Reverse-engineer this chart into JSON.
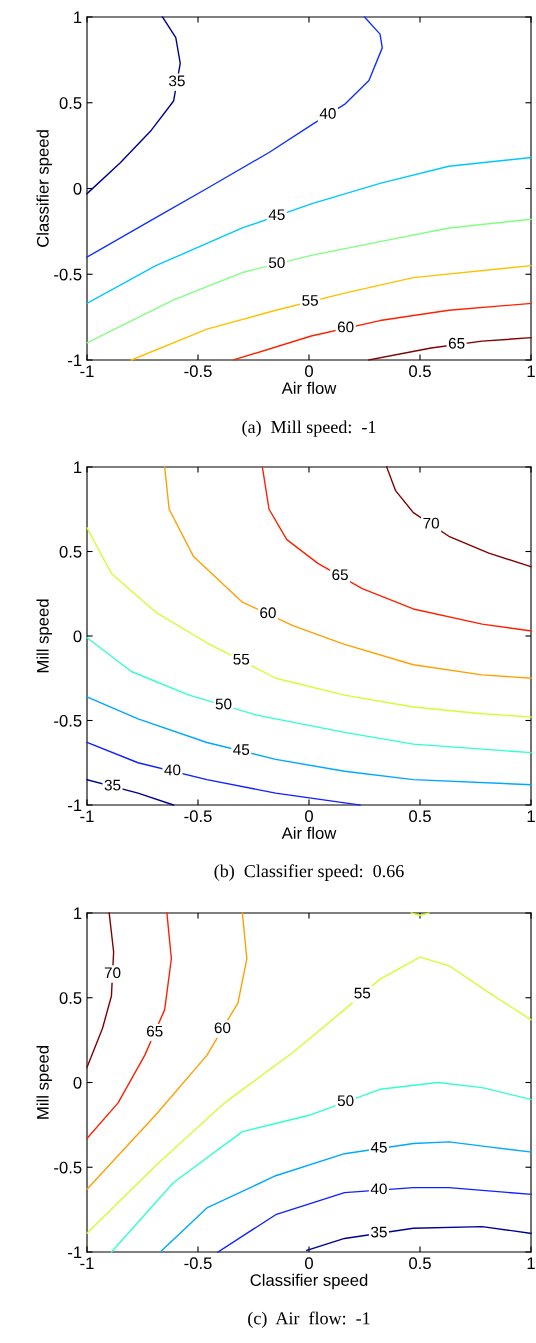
{
  "chart_data": [
    {
      "type": "line",
      "title": "(a)  Mill speed:  -1",
      "xlabel": "Air flow",
      "ylabel": "Classifier speed",
      "xlim": [
        -1,
        1
      ],
      "ylim": [
        -1,
        1
      ],
      "xticks": [
        -1,
        -0.5,
        0,
        0.5,
        1
      ],
      "yticks": [
        -1,
        -0.5,
        0,
        0.5,
        1
      ],
      "grid": false,
      "legend": false,
      "series": [
        {
          "name": "35",
          "color": "#00008f",
          "x": [
            -0.66,
            -0.6,
            -0.58,
            -0.61,
            -0.71,
            -0.85,
            -1
          ],
          "values": [
            1,
            0.88,
            0.73,
            0.51,
            0.34,
            0.15,
            -0.03
          ]
        },
        {
          "name": "40",
          "color": "#1030ff",
          "x": [
            0.25,
            0.32,
            0.33,
            0.27,
            0.16,
            0.01,
            -0.18,
            -0.46,
            -0.69,
            -1
          ],
          "values": [
            1,
            0.9,
            0.82,
            0.63,
            0.49,
            0.37,
            0.21,
            0.0,
            -0.17,
            -0.4
          ]
        },
        {
          "name": "45",
          "color": "#00c8ff",
          "x": [
            -1,
            -0.69,
            -0.3,
            0.01,
            0.32,
            0.63,
            1
          ],
          "values": [
            -0.67,
            -0.45,
            -0.23,
            -0.09,
            0.03,
            0.13,
            0.18
          ]
        },
        {
          "name": "50",
          "color": "#80ff80",
          "x": [
            -1,
            -0.61,
            -0.3,
            0.01,
            0.32,
            0.63,
            1
          ],
          "values": [
            -0.9,
            -0.65,
            -0.49,
            -0.39,
            -0.31,
            -0.23,
            -0.18
          ]
        },
        {
          "name": "55",
          "color": "#ffc000",
          "x": [
            -0.8,
            -0.46,
            -0.15,
            0.16,
            0.47,
            1
          ],
          "values": [
            -1,
            -0.82,
            -0.71,
            -0.61,
            -0.52,
            -0.45
          ]
        },
        {
          "name": "60",
          "color": "#ff2000",
          "x": [
            -0.34,
            0.01,
            0.32,
            0.63,
            1
          ],
          "values": [
            -1,
            -0.86,
            -0.77,
            -0.71,
            -0.67
          ]
        },
        {
          "name": "65",
          "color": "#800000",
          "x": [
            0.27,
            0.55,
            0.78,
            1
          ],
          "values": [
            -1,
            -0.93,
            -0.89,
            -0.87
          ]
        }
      ]
    },
    {
      "type": "line",
      "title": "(b)  Classifier speed:  0.66",
      "xlabel": "Air flow",
      "ylabel": "Mill speed",
      "xlim": [
        -1,
        1
      ],
      "ylim": [
        -1,
        1
      ],
      "xticks": [
        -1,
        -0.5,
        0,
        0.5,
        1
      ],
      "yticks": [
        -1,
        -0.5,
        0,
        0.5,
        1
      ],
      "grid": false,
      "legend": false,
      "series": [
        {
          "name": "70",
          "color": "#800000",
          "x": [
            0.35,
            0.39,
            0.47,
            0.63,
            0.81,
            1
          ],
          "values": [
            1,
            0.86,
            0.73,
            0.59,
            0.49,
            0.41
          ]
        },
        {
          "name": "65",
          "color": "#ff2000",
          "x": [
            -0.21,
            -0.18,
            -0.1,
            0.04,
            0.24,
            0.47,
            0.78,
            1
          ],
          "values": [
            1,
            0.75,
            0.57,
            0.43,
            0.28,
            0.16,
            0.07,
            0.03
          ]
        },
        {
          "name": "60",
          "color": "#ffa000",
          "x": [
            -0.65,
            -0.63,
            -0.52,
            -0.3,
            -0.07,
            0.16,
            0.47,
            0.78,
            1
          ],
          "values": [
            1,
            0.75,
            0.47,
            0.2,
            0.06,
            -0.05,
            -0.17,
            -0.23,
            -0.25
          ]
        },
        {
          "name": "55",
          "color": "#d0ff30",
          "x": [
            -1,
            -0.89,
            -0.69,
            -0.46,
            -0.15,
            0.16,
            0.47,
            0.78,
            1
          ],
          "values": [
            0.64,
            0.37,
            0.14,
            -0.04,
            -0.25,
            -0.35,
            -0.42,
            -0.46,
            -0.48
          ]
        },
        {
          "name": "50",
          "color": "#30ffd0",
          "x": [
            -1,
            -0.8,
            -0.54,
            -0.23,
            0.16,
            0.47,
            1
          ],
          "values": [
            -0.01,
            -0.21,
            -0.35,
            -0.47,
            -0.57,
            -0.64,
            -0.69
          ]
        },
        {
          "name": "45",
          "color": "#00a8ff",
          "x": [
            -1,
            -0.77,
            -0.46,
            -0.15,
            0.16,
            0.47,
            1
          ],
          "values": [
            -0.36,
            -0.49,
            -0.63,
            -0.73,
            -0.8,
            -0.85,
            -0.88
          ]
        },
        {
          "name": "40",
          "color": "#1020ff",
          "x": [
            -1,
            -0.77,
            -0.46,
            -0.15,
            0.23
          ],
          "values": [
            -0.63,
            -0.75,
            -0.85,
            -0.93,
            -1
          ]
        },
        {
          "name": "35",
          "color": "#00008f",
          "x": [
            -1,
            -0.77,
            -0.61
          ],
          "values": [
            -0.85,
            -0.93,
            -1
          ]
        }
      ]
    },
    {
      "type": "line",
      "title": "(c)  Air  flow:  -1",
      "xlabel": "Classifier speed",
      "ylabel": "Mill speed",
      "xlim": [
        -1,
        1
      ],
      "ylim": [
        -1,
        1
      ],
      "xticks": [
        -1,
        -0.5,
        0,
        0.5,
        1
      ],
      "yticks": [
        -1,
        -0.5,
        0,
        0.5,
        1
      ],
      "grid": false,
      "legend": false,
      "series": [
        {
          "name": "70",
          "color": "#800000",
          "x": [
            -0.9,
            -0.88,
            -0.89,
            -0.93,
            -1
          ],
          "values": [
            1,
            0.77,
            0.51,
            0.32,
            0.09
          ]
        },
        {
          "name": "65",
          "color": "#ff2000",
          "x": [
            -0.64,
            -0.62,
            -0.65,
            -0.74,
            -0.86,
            -1
          ],
          "values": [
            1,
            0.73,
            0.43,
            0.16,
            -0.12,
            -0.33
          ]
        },
        {
          "name": "60",
          "color": "#ffa000",
          "x": [
            -0.3,
            -0.28,
            -0.32,
            -0.46,
            -0.69,
            -1
          ],
          "values": [
            1,
            0.73,
            0.47,
            0.16,
            -0.19,
            -0.63
          ]
        },
        {
          "name": "55",
          "color": "#d0ff30",
          "x": [
            -1,
            -0.69,
            -0.38,
            -0.07,
            0.16,
            0.32,
            0.5,
            0.63,
            0.81,
            1
          ],
          "values": [
            -0.89,
            -0.49,
            -0.12,
            0.18,
            0.43,
            0.61,
            0.74,
            0.69,
            0.53,
            0.37
          ]
        },
        {
          "color": "#d0ff30",
          "x": [
            0.46,
            0.5,
            0.54
          ],
          "values": [
            1,
            0.985,
            1
          ]
        },
        {
          "name": "50",
          "color": "#30ffd0",
          "x": [
            -0.89,
            -0.61,
            -0.3,
            0.01,
            0.32,
            0.58,
            0.78,
            1
          ],
          "values": [
            -1,
            -0.59,
            -0.29,
            -0.19,
            -0.04,
            0.0,
            -0.03,
            -0.1
          ]
        },
        {
          "name": "45",
          "color": "#00a8ff",
          "x": [
            -0.67,
            -0.46,
            -0.15,
            0.16,
            0.47,
            0.63,
            0.81,
            1
          ],
          "values": [
            -1,
            -0.74,
            -0.55,
            -0.42,
            -0.36,
            -0.35,
            -0.38,
            -0.41
          ]
        },
        {
          "name": "40",
          "color": "#1020ff",
          "x": [
            -0.41,
            -0.15,
            0.16,
            0.47,
            0.63,
            1
          ],
          "values": [
            -1,
            -0.78,
            -0.65,
            -0.62,
            -0.62,
            -0.66
          ]
        },
        {
          "name": "35",
          "color": "#00008f",
          "x": [
            -0.01,
            0.16,
            0.47,
            0.78,
            1
          ],
          "values": [
            -0.99,
            -0.92,
            -0.86,
            -0.85,
            -0.89
          ]
        }
      ]
    }
  ]
}
